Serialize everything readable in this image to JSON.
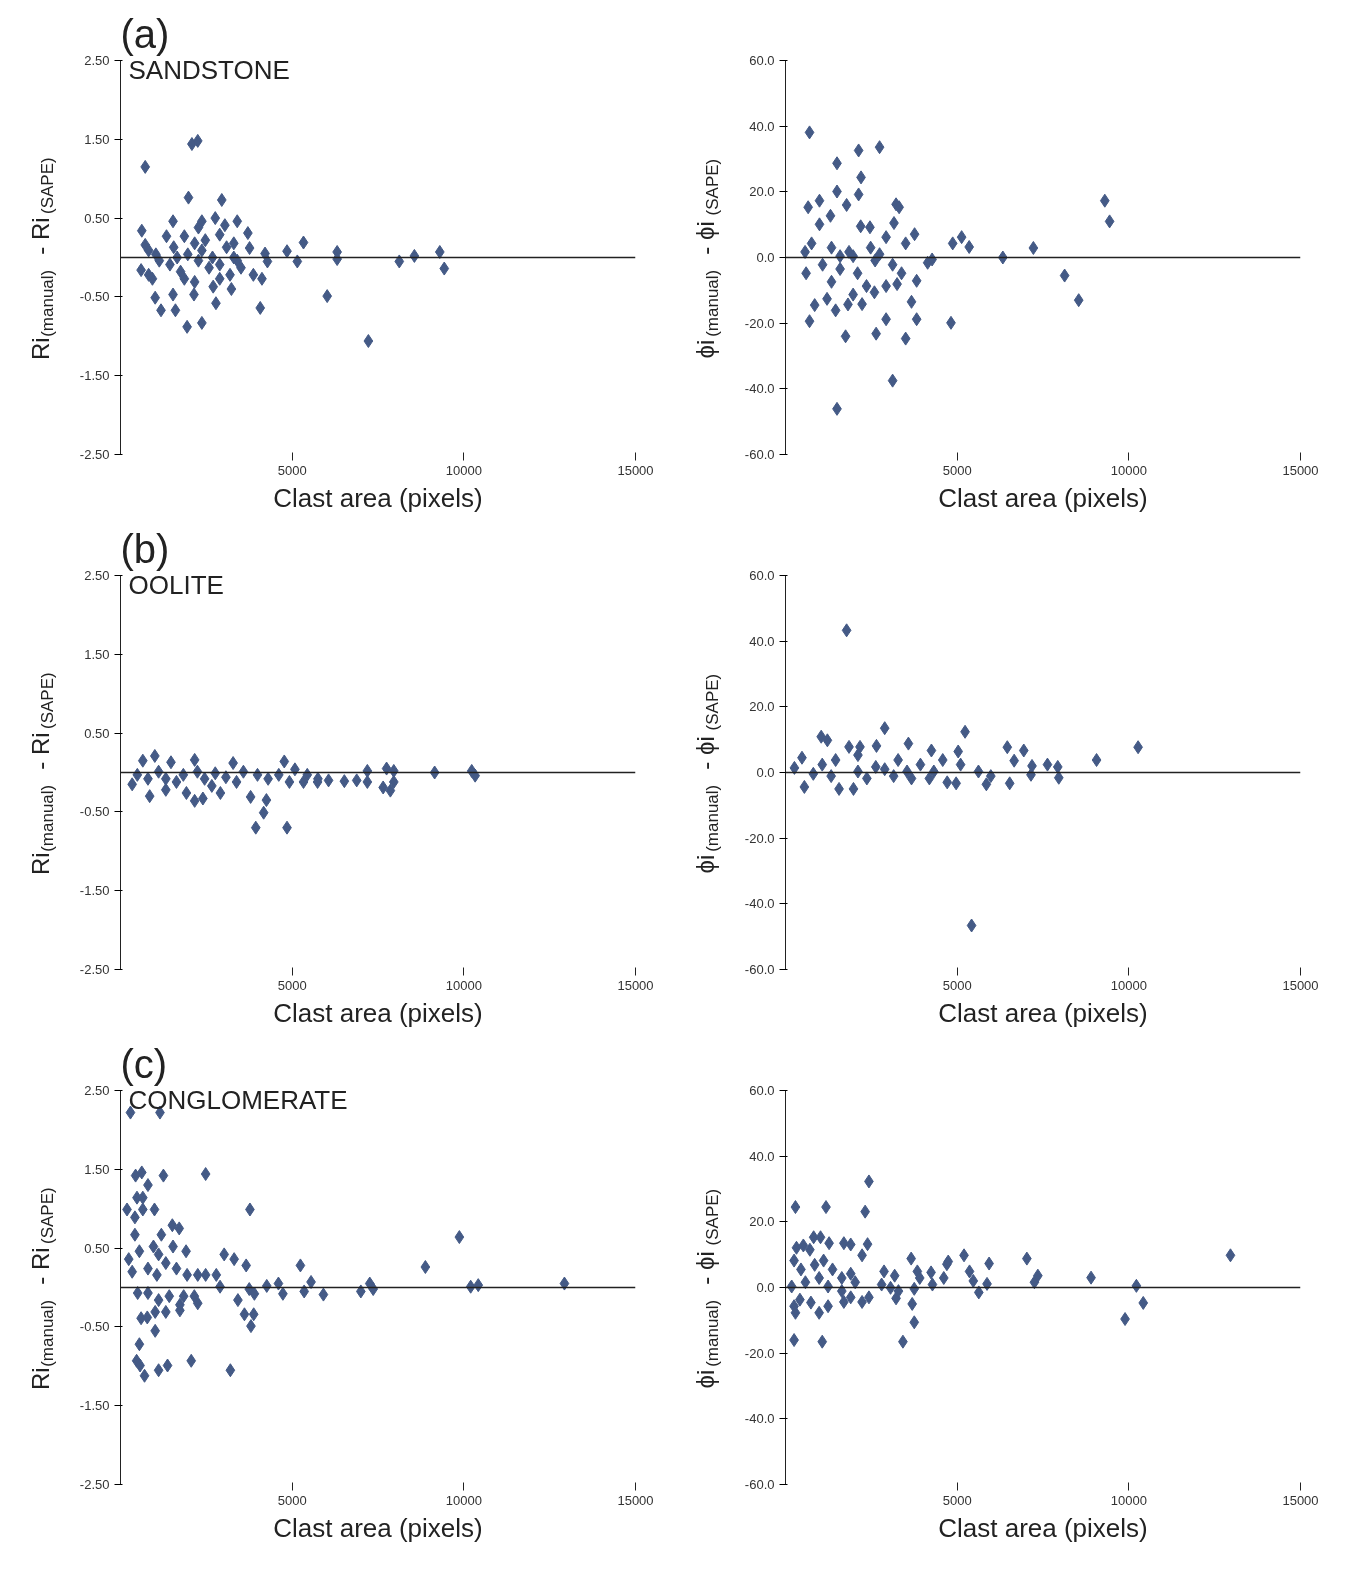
{
  "chart_data": [
    {
      "type": "scatter",
      "title": "(a)",
      "annotations": [
        "SANDSTONE"
      ],
      "xlabel": "Clast area (pixels)",
      "ylabel": "Ri$_{(manual)}$ - Ri$_{(SAPE)}$",
      "marker": "diamond",
      "grid": false,
      "legend": false,
      "xlim": [
        0,
        15000
      ],
      "xticks": [
        5000,
        10000,
        15000
      ],
      "ylim": [
        -2.5,
        2.5
      ],
      "yticks": [
        {
          "value": 2.5,
          "label": "2.50"
        },
        {
          "value": 1.5,
          "label": "1.50"
        },
        {
          "value": 0.5,
          "label": "0.50"
        },
        {
          "value": -0.5,
          "label": "-0.50"
        },
        {
          "value": -1.5,
          "label": "-1.50"
        },
        {
          "value": -2.5,
          "label": "-2.50"
        }
      ],
      "ref_lines": [
        {
          "axis": "y",
          "value": 0,
          "color": "#222222"
        }
      ],
      "series": [
        {
          "color": "#445a86",
          "x": [
            720,
            2080,
            2250,
            1980,
            2950,
            620,
            1530,
            2760,
            2370,
            2270,
            3040,
            3400,
            3710,
            2890,
            3760,
            4210,
            4850,
            5330,
            6310,
            6310,
            5150,
            4280,
            8120,
            8560,
            9300,
            9430,
            6020,
            7220,
            4120,
            4070,
            3870,
            3230,
            2780,
            2370,
            1940,
            1600,
            1180,
            1010,
            1530,
            2140,
            2700,
            2160,
            1860,
            930,
            600,
            820,
            720,
            1030,
            1340,
            1650,
            1860,
            2160,
            2470,
            2680,
            3090,
            3300,
            2890,
            2580,
            2270,
            1440,
            1130,
            3400,
            3510,
            2890,
            3190,
            1750,
            1960,
            2370,
            3300,
            820,
            1550
          ],
          "values": [
            1.15,
            1.44,
            1.48,
            0.76,
            0.73,
            0.34,
            0.46,
            0.5,
            0.46,
            0.38,
            0.41,
            0.46,
            0.31,
            0.29,
            0.12,
            0.05,
            0.08,
            0.19,
            0.07,
            -0.02,
            -0.05,
            -0.05,
            -0.05,
            0.02,
            0.07,
            -0.14,
            -0.49,
            -1.06,
            -0.27,
            -0.64,
            -0.22,
            -0.4,
            -0.58,
            -0.83,
            -0.88,
            -0.67,
            -0.67,
            -0.51,
            -0.47,
            -0.47,
            -0.37,
            -0.31,
            -0.27,
            -0.27,
            -0.16,
            -0.22,
            0.16,
            0.04,
            0.27,
            0.0,
            0.27,
            0.18,
            0.22,
            0.0,
            0.13,
            0.18,
            -0.09,
            -0.13,
            -0.04,
            -0.09,
            -0.04,
            -0.04,
            -0.13,
            -0.27,
            -0.22,
            -0.18,
            0.04,
            0.09,
            0.0,
            0.09,
            0.13
          ]
        }
      ]
    },
    {
      "type": "scatter",
      "xlabel": "Clast area (pixels)",
      "ylabel": "ϕi$_{(manual)}$ - ϕi$_{(SAPE)}$",
      "marker": "diamond",
      "grid": false,
      "legend": false,
      "xlim": [
        0,
        15000
      ],
      "xticks": [
        5000,
        10000,
        15000
      ],
      "ylim": [
        -60,
        60
      ],
      "yticks": [
        {
          "value": 60,
          "label": "60.0"
        },
        {
          "value": 40,
          "label": "40.0"
        },
        {
          "value": 20,
          "label": "20.0"
        },
        {
          "value": 0,
          "label": "0.0"
        },
        {
          "value": -20,
          "label": "-20.0"
        },
        {
          "value": -40,
          "label": "-40.0"
        },
        {
          "value": -60,
          "label": "-60.0"
        }
      ],
      "ref_lines": [
        {
          "axis": "y",
          "value": 0,
          "color": "#222222"
        }
      ],
      "series": [
        {
          "color": "#445a86",
          "x": [
            700,
            2130,
            2740,
            1500,
            2200,
            1500,
            2130,
            660,
            990,
            1780,
            3220,
            3310,
            9300,
            9440,
            990,
            1310,
            2190,
            2460,
            3160,
            3760,
            4870,
            5130,
            5350,
            7220,
            6330,
            570,
            760,
            8130,
            8540,
            4820,
            3500,
            2930,
            2640,
            1750,
            3820,
            3670,
            700,
            850,
            3120,
            1500,
            1210,
            1460,
            1820,
            2230,
            2590,
            1970,
            600,
            1080,
            1590,
            2100,
            2610,
            3120,
            3380,
            4140,
            4270,
            3820,
            1340,
            2360,
            2930,
            3250,
            1340,
            1850,
            2480,
            2930,
            3500,
            1970,
            2740,
            1590
          ],
          "values": [
            38.1,
            32.6,
            33.6,
            28.7,
            24.4,
            20.1,
            19.2,
            15.3,
            17.3,
            16.0,
            16.2,
            15.3,
            17.3,
            11.0,
            10.1,
            12.7,
            9.5,
            9.2,
            10.5,
            7.1,
            4.3,
            6.2,
            3.2,
            2.9,
            0.0,
            1.7,
            4.3,
            -5.5,
            -13.0,
            -19.9,
            -24.7,
            -18.8,
            -23.2,
            -24.0,
            -18.8,
            -13.5,
            -19.4,
            -14.5,
            -37.5,
            -46.1,
            -12.6,
            -16.1,
            -14.3,
            -14.2,
            -10.6,
            -11.3,
            -4.8,
            -2.2,
            -3.5,
            -4.8,
            -0.9,
            -2.2,
            -4.8,
            -1.6,
            -0.6,
            -7.1,
            -7.4,
            -8.7,
            -8.7,
            -8.1,
            3.0,
            1.7,
            3.0,
            6.2,
            4.3,
            0.4,
            1.0,
            0.4
          ]
        }
      ]
    },
    {
      "type": "scatter",
      "title": "(b)",
      "annotations": [
        "OOLITE"
      ],
      "xlabel": "Clast area (pixels)",
      "ylabel": "Ri$_{(manual)}$ - Ri$_{(SAPE)}$",
      "marker": "diamond",
      "grid": false,
      "legend": false,
      "xlim": [
        0,
        15000
      ],
      "xticks": [
        5000,
        10000,
        15000
      ],
      "ylim": [
        -2.5,
        2.5
      ],
      "yticks": [
        {
          "value": 2.5,
          "label": "2.50"
        },
        {
          "value": 1.5,
          "label": "1.50"
        },
        {
          "value": 0.5,
          "label": "0.50"
        },
        {
          "value": -0.5,
          "label": "-0.50"
        },
        {
          "value": -1.5,
          "label": "-1.50"
        },
        {
          "value": -2.5,
          "label": "-2.50"
        }
      ],
      "ref_lines": [
        {
          "axis": "y",
          "value": 0,
          "color": "#222222"
        }
      ],
      "series": [
        {
          "color": "#445a86",
          "x": [
            340,
            650,
            1000,
            1470,
            2160,
            3280,
            4770,
            850,
            1320,
            1920,
            2160,
            2400,
            2910,
            3790,
            4250,
            4170,
            3940,
            4850,
            7190,
            7750,
            7960,
            9150,
            10230,
            10330,
            6520,
            6880,
            7190,
            7650,
            7960,
            7860,
            6060,
            5750,
            5440,
            5080,
            4610,
            4300,
            3990,
            3580,
            3070,
            2760,
            2450,
            1830,
            1630,
            1320,
            800,
            490,
            1110,
            2240,
            3380,
            2660,
            4920,
            5330,
            5740
          ],
          "values": [
            -0.15,
            0.15,
            0.21,
            0.13,
            0.16,
            0.12,
            0.14,
            -0.3,
            -0.22,
            -0.26,
            -0.36,
            -0.33,
            -0.26,
            -0.31,
            -0.35,
            -0.51,
            -0.7,
            -0.7,
            0.02,
            0.05,
            0.02,
            0.0,
            0.02,
            -0.04,
            -0.11,
            -0.1,
            -0.12,
            -0.19,
            -0.12,
            -0.23,
            -0.1,
            -0.08,
            -0.03,
            0.04,
            -0.03,
            -0.08,
            -0.03,
            0.01,
            -0.06,
            -0.01,
            -0.08,
            -0.03,
            -0.12,
            -0.08,
            -0.08,
            -0.03,
            0.01,
            0.01,
            -0.12,
            -0.17,
            -0.12,
            -0.12,
            -0.12
          ]
        }
      ]
    },
    {
      "type": "scatter",
      "xlabel": "Clast area (pixels)",
      "ylabel": "ϕi$_{(manual)}$ - ϕi$_{(SAPE)}$",
      "marker": "diamond",
      "grid": false,
      "legend": false,
      "xlim": [
        0,
        15000
      ],
      "xticks": [
        5000,
        10000,
        15000
      ],
      "ylim": [
        -60,
        60
      ],
      "yticks": [
        {
          "value": 60,
          "label": "60.0"
        },
        {
          "value": 40,
          "label": "40.0"
        },
        {
          "value": 20,
          "label": "20.0"
        },
        {
          "value": 0,
          "label": "0.0"
        },
        {
          "value": -20,
          "label": "-20.0"
        },
        {
          "value": -40,
          "label": "-40.0"
        },
        {
          "value": -60,
          "label": "-60.0"
        }
      ],
      "ref_lines": [
        {
          "axis": "y",
          "value": 0,
          "color": "#222222"
        }
      ],
      "series": [
        {
          "color": "#445a86",
          "x": [
            1780,
            5420,
            2890,
            5230,
            1040,
            1220,
            6460,
            6940,
            10270,
            9060,
            6660,
            260,
            480,
            1850,
            2170,
            2650,
            3580,
            4250,
            5030,
            7180,
            7630,
            7930,
            7960,
            7150,
            5980,
            5850,
            6530,
            550,
            1560,
            1980,
            2370,
            3150,
            3670,
            4190,
            4710,
            4970,
            5620,
            1070,
            1460,
            2110,
            2630,
            3280,
            3930,
            4580,
            5100,
            810,
            1330,
            2110,
            2890,
            3540,
            4320
          ],
          "values": [
            43.3,
            -46.6,
            13.5,
            12.4,
            10.9,
            9.8,
            7.7,
            6.7,
            7.7,
            3.8,
            3.6,
            1.4,
            4.5,
            7.8,
            7.8,
            8.1,
            8.8,
            6.7,
            6.4,
            2.0,
            2.4,
            1.7,
            -1.6,
            -0.7,
            -1.1,
            -3.6,
            -3.3,
            -4.4,
            -5.0,
            -5.0,
            -1.8,
            -1.1,
            -1.8,
            -1.8,
            -3.0,
            -3.3,
            0.3,
            2.4,
            3.8,
            5.3,
            1.7,
            3.8,
            2.4,
            3.8,
            2.4,
            -0.4,
            -1.1,
            0.3,
            1.0,
            0.3,
            0.3
          ]
        }
      ]
    },
    {
      "type": "scatter",
      "title": "(c)",
      "annotations": [
        "CONGLOMERATE"
      ],
      "xlabel": "Clast area (pixels)",
      "ylabel": "Ri$_{(manual)}$ - Ri$_{(SAPE)}$",
      "marker": "diamond",
      "grid": false,
      "legend": false,
      "xlim": [
        0,
        15000
      ],
      "xticks": [
        5000,
        10000,
        15000
      ],
      "ylim": [
        -2.5,
        2.5
      ],
      "yticks": [
        {
          "value": 2.5,
          "label": "2.50"
        },
        {
          "value": 1.5,
          "label": "1.50"
        },
        {
          "value": 0.5,
          "label": "0.50"
        },
        {
          "value": -0.5,
          "label": "-0.50"
        },
        {
          "value": -1.5,
          "label": "-1.50"
        },
        {
          "value": -2.5,
          "label": "-2.50"
        }
      ],
      "ref_lines": [
        {
          "axis": "y",
          "value": 0,
          "color": "#222222"
        }
      ],
      "series": [
        {
          "color": "#445a86",
          "x": [
            290,
            1150,
            440,
            620,
            1250,
            2480,
            800,
            480,
            650,
            190,
            650,
            990,
            3770,
            420,
            1510,
            1710,
            420,
            1190,
            9870,
            960,
            1530,
            1910,
            3020,
            3310,
            5240,
            8880,
            3660,
            240,
            550,
            1110,
            1320,
            1630,
            1940,
            2250,
            2480,
            2790,
            340,
            800,
            1060,
            2900,
            3750,
            3900,
            4260,
            4600,
            4730,
            5350,
            5550,
            5910,
            7000,
            7260,
            7360,
            10200,
            10420,
            12930,
            3420,
            3610,
            3880,
            3800,
            600,
            780,
            1010,
            550,
            470,
            570,
            700,
            1110,
            1370,
            2060,
            3200,
            500,
            800,
            1110,
            1420,
            1730,
            1320,
            1010,
            1840,
            2250,
            2150,
            1730
          ],
          "values": [
            2.22,
            2.22,
            1.42,
            1.46,
            1.42,
            1.44,
            1.3,
            1.14,
            1.14,
            0.99,
            0.99,
            0.99,
            0.99,
            0.89,
            0.79,
            0.75,
            0.67,
            0.67,
            0.64,
            0.52,
            0.52,
            0.46,
            0.42,
            0.36,
            0.28,
            0.26,
            0.28,
            0.36,
            0.46,
            0.42,
            0.31,
            0.24,
            0.16,
            0.16,
            0.16,
            0.16,
            0.2,
            0.24,
            0.16,
            0.01,
            -0.02,
            -0.08,
            0.02,
            0.05,
            -0.08,
            -0.05,
            0.07,
            -0.09,
            -0.05,
            0.05,
            -0.02,
            0.01,
            0.03,
            0.05,
            -0.16,
            -0.34,
            -0.34,
            -0.49,
            -0.39,
            -0.38,
            -0.55,
            -0.72,
            -0.93,
            -0.99,
            -1.12,
            -1.05,
            -0.99,
            -0.93,
            -1.05,
            -0.07,
            -0.07,
            -0.16,
            -0.11,
            -0.29,
            -0.31,
            -0.31,
            -0.11,
            -0.2,
            -0.11,
            -0.22
          ]
        }
      ]
    },
    {
      "type": "scatter",
      "xlabel": "Clast area (pixels)",
      "ylabel": "ϕi$_{(manual)}$ - ϕi$_{(SAPE)}$",
      "marker": "diamond",
      "grid": false,
      "legend": false,
      "xlim": [
        0,
        15000
      ],
      "xticks": [
        5000,
        10000,
        15000
      ],
      "ylim": [
        -60,
        60
      ],
      "yticks": [
        {
          "value": 60,
          "label": "60.0"
        },
        {
          "value": 40,
          "label": "40.0"
        },
        {
          "value": 20,
          "label": "20.0"
        },
        {
          "value": 0,
          "label": "0.0"
        },
        {
          "value": -20,
          "label": "-20.0"
        },
        {
          "value": -40,
          "label": "-40.0"
        },
        {
          "value": -60,
          "label": "-60.0"
        }
      ],
      "ref_lines": [
        {
          "axis": "y",
          "value": 0,
          "color": "#222222"
        }
      ],
      "series": [
        {
          "color": "#445a86",
          "x": [
            2430,
            290,
            1180,
            2320,
            820,
            1020,
            1270,
            1700,
            1900,
            2390,
            2230,
            320,
            520,
            710,
            250,
            450,
            850,
            1110,
            1370,
            1640,
            1900,
            2030,
            180,
            580,
            980,
            1240,
            1640,
            250,
            290,
            420,
            740,
            980,
            1240,
            1700,
            1900,
            2230,
            2430,
            250,
            1070,
            3420,
            3750,
            3690,
            2870,
            3180,
            2800,
            3060,
            3220,
            3290,
            3660,
            3840,
            3910,
            3750,
            4240,
            4280,
            4610,
            4700,
            4740,
            5200,
            5360,
            5470,
            5630,
            5870,
            5930,
            7030,
            7250,
            7350,
            8900,
            10220,
            9890,
            10420,
            12960
          ],
          "values": [
            32.3,
            24.5,
            24.5,
            23.1,
            15.3,
            15.3,
            13.5,
            13.5,
            13.1,
            13.2,
            9.8,
            12.1,
            12.8,
            11.5,
            8.2,
            5.5,
            6.9,
            8.2,
            5.5,
            2.9,
            4.2,
            1.6,
            0.3,
            1.6,
            2.9,
            0.3,
            -1.1,
            -5.7,
            -7.7,
            -3.7,
            -4.6,
            -7.7,
            -5.7,
            -4.4,
            -3.0,
            -4.4,
            -3.0,
            -16.0,
            -16.5,
            -16.5,
            -10.6,
            -5.0,
            4.9,
            3.6,
            0.9,
            -0.1,
            -3.3,
            -1.1,
            8.8,
            4.9,
            2.9,
            -0.4,
            4.6,
            0.9,
            2.9,
            7.1,
            7.9,
            9.8,
            4.9,
            2.0,
            -1.5,
            1.1,
            7.3,
            8.8,
            1.6,
            3.6,
            3.0,
            0.5,
            -9.6,
            -4.7,
            9.8
          ]
        }
      ]
    }
  ]
}
